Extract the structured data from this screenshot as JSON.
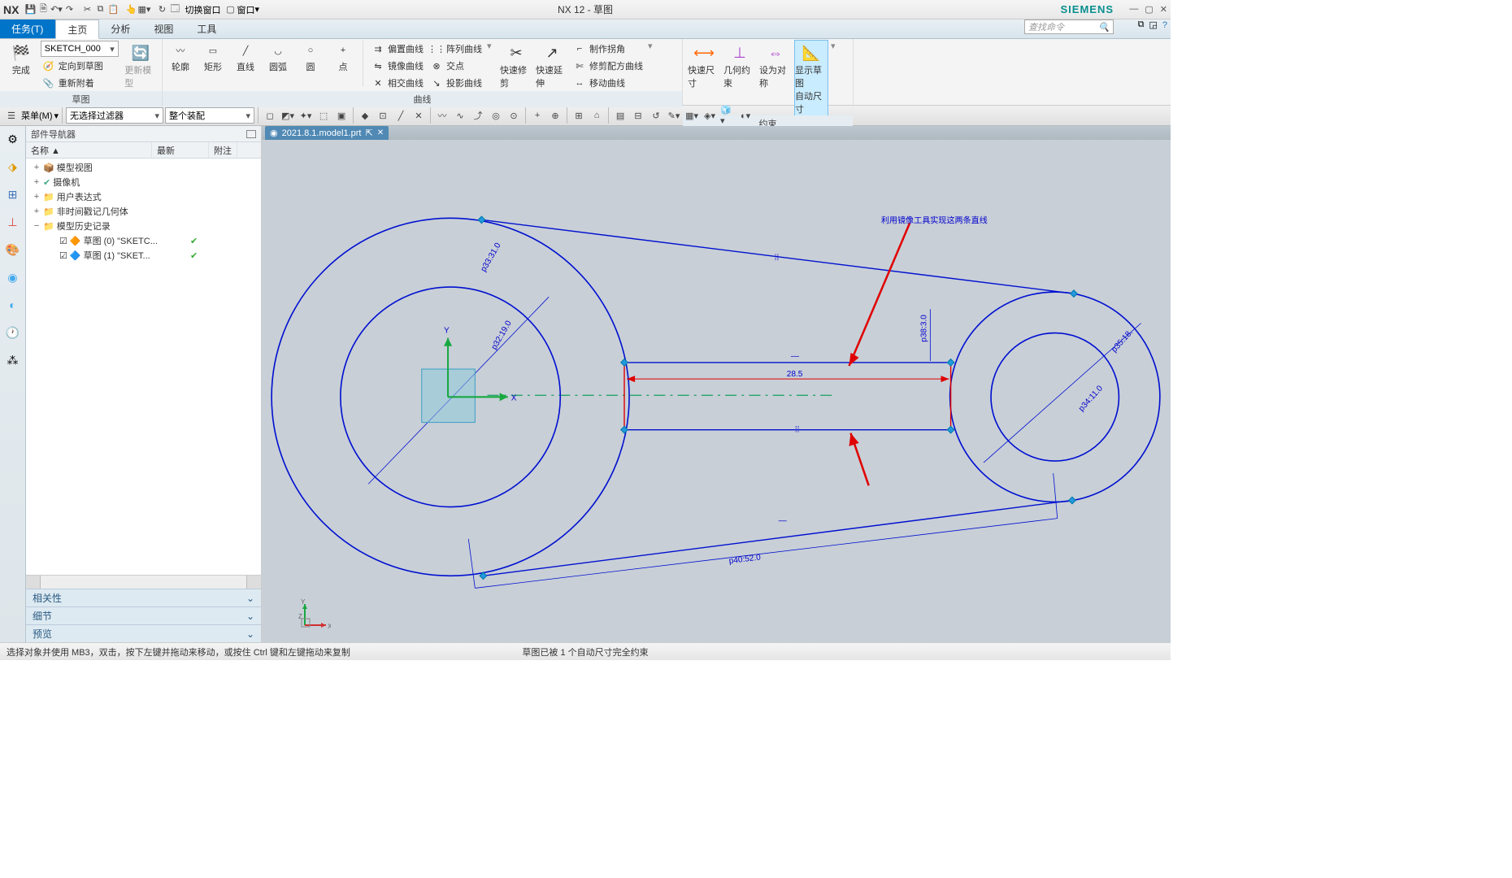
{
  "app": {
    "name": "NX",
    "title": "NX 12 - 草图",
    "brand": "SIEMENS"
  },
  "quickaccess": {
    "switch_window": "切换窗口",
    "window_menu": "窗口"
  },
  "menubar": {
    "task": "任务(T)",
    "tabs": [
      "主页",
      "分析",
      "视图",
      "工具"
    ],
    "active": 0,
    "search_placeholder": "查找命令"
  },
  "ribbon": {
    "group_sketch": {
      "label": "草图",
      "finish": "完成",
      "sketch_select": "SKETCH_000",
      "orient": "定向到草图",
      "reattach": "重新附着",
      "update": "更新模型"
    },
    "group_curve": {
      "label": "曲线",
      "shapes": [
        {
          "name": "profile-icon",
          "label": "轮廓"
        },
        {
          "name": "rectangle-icon",
          "label": "矩形"
        },
        {
          "name": "line-icon",
          "label": "直线"
        },
        {
          "name": "arc-icon",
          "label": "圆弧"
        },
        {
          "name": "circle-icon",
          "label": "圆"
        },
        {
          "name": "point-icon",
          "label": "点"
        }
      ],
      "tools": [
        {
          "name": "offset-curve",
          "label": "偏置曲线"
        },
        {
          "name": "mirror-curve",
          "label": "镜像曲线"
        },
        {
          "name": "intersect-curve",
          "label": "相交曲线"
        },
        {
          "name": "pattern-curve",
          "label": "阵列曲线"
        },
        {
          "name": "intersection-point",
          "label": "交点"
        },
        {
          "name": "project-curve",
          "label": "投影曲线"
        }
      ],
      "trim": "快速修剪",
      "extend": "快速延伸",
      "tools2": [
        {
          "name": "make-corner",
          "label": "制作拐角"
        },
        {
          "name": "trim-recipe",
          "label": "修剪配方曲线"
        },
        {
          "name": "move-curve",
          "label": "移动曲线"
        }
      ]
    },
    "group_constraint": {
      "label": "约束",
      "rapid_dim": "快速尺寸",
      "geo_constraint": "几何约束",
      "make_sym": "设为对称",
      "show_sketch": "显示草图",
      "auto_dim": "自动尺寸"
    }
  },
  "selbar": {
    "menu": "菜单(M)",
    "filter": "无选择过滤器",
    "assembly": "整个装配"
  },
  "nav": {
    "title": "部件导航器",
    "cols": [
      "名称",
      "最新",
      "附注"
    ],
    "tree": [
      {
        "indent": 0,
        "exp": "+",
        "icon": "📦",
        "label": "模型视图",
        "color": "#4a8"
      },
      {
        "indent": 0,
        "exp": "+",
        "icon": "✔",
        "label": "摄像机",
        "color": "#4a8"
      },
      {
        "indent": 0,
        "exp": "+",
        "icon": "📁",
        "label": "用户表达式",
        "color": "#c93"
      },
      {
        "indent": 0,
        "exp": "+",
        "icon": "📁",
        "label": "非时间戳记几何体",
        "color": "#c93"
      },
      {
        "indent": 0,
        "exp": "−",
        "icon": "📁",
        "label": "模型历史记录",
        "color": "#c93"
      },
      {
        "indent": 1,
        "exp": "",
        "icon": "☑",
        "label": "草图 (0) \"SKETC...",
        "tick": true,
        "extra": "🔶"
      },
      {
        "indent": 1,
        "exp": "",
        "icon": "☑",
        "label": "草图 (1) \"SKET...",
        "tick": true,
        "extra": "🔷"
      }
    ],
    "sections": [
      "相关性",
      "细节",
      "预览"
    ]
  },
  "filetab": {
    "name": "2021.8.1.model1.prt",
    "icon": "disc-icon"
  },
  "sketch": {
    "annotation": "利用镜像工具实现这两条直线",
    "dim_width": "28.5",
    "dim_overall": "p40:52.0",
    "dim_r1": "p33:31.0",
    "dim_r2": "p32:19.0",
    "dim_r3": "p35:18.",
    "dim_r4": "p34:11.0",
    "dim_h": "p38:3.0",
    "origin_rect_color": "#8fcada",
    "sketch_blue": "#0008d8",
    "centerline": "#1a7f38",
    "dash_line": "#0aa050",
    "red": "#e10000",
    "x_label": "X",
    "y_label": "Y",
    "z_label": "Z"
  },
  "status": {
    "left": "选择对象并使用 MB3，双击，按下左键并拖动来移动，或按住 Ctrl 键和左键拖动来复制",
    "center": "草图已被 1 个自动尺寸完全约束"
  }
}
